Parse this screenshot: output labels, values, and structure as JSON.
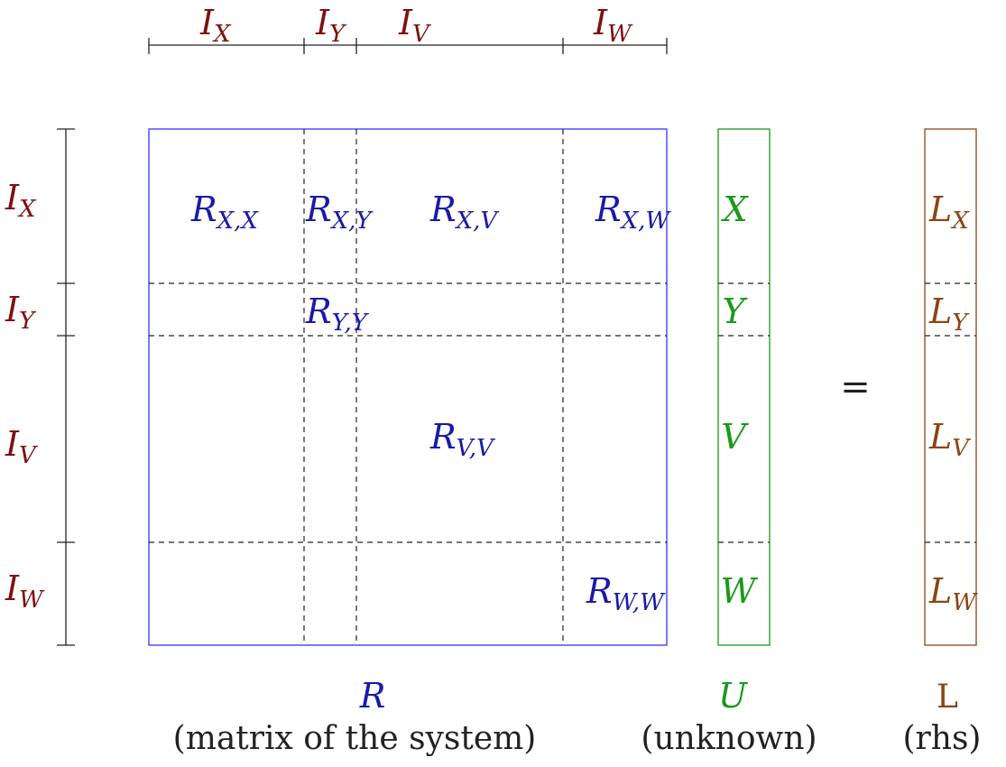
{
  "colors": {
    "index_label": "#7f1010",
    "matrix": "#1a1aa8",
    "matrix_box": "#3333ff",
    "unknown": "#1a9a1a",
    "rhs": "#8b4513",
    "dim_line": "#222222",
    "partition": "#222222"
  },
  "column_indices": [
    {
      "base": "I",
      "sub": "X"
    },
    {
      "base": "I",
      "sub": "Y"
    },
    {
      "base": "I",
      "sub": "V"
    },
    {
      "base": "I",
      "sub": "W"
    }
  ],
  "row_indices": [
    {
      "base": "I",
      "sub": "X"
    },
    {
      "base": "I",
      "sub": "Y"
    },
    {
      "base": "I",
      "sub": "V"
    },
    {
      "base": "I",
      "sub": "W"
    }
  ],
  "matrix_blocks": [
    {
      "base": "R",
      "sub": "X,X"
    },
    {
      "base": "R",
      "sub": "X,Y"
    },
    {
      "base": "R",
      "sub": "X,V"
    },
    {
      "base": "R",
      "sub": "X,W"
    },
    {
      "base": "R",
      "sub": "Y,Y"
    },
    {
      "base": "R",
      "sub": "V,V"
    },
    {
      "base": "R",
      "sub": "W,W"
    }
  ],
  "unknown_entries": [
    "X",
    "Y",
    "V",
    "W"
  ],
  "rhs_entries": [
    {
      "base": "L",
      "sub": "X"
    },
    {
      "base": "L",
      "sub": "Y"
    },
    {
      "base": "L",
      "sub": "V"
    },
    {
      "base": "L",
      "sub": "W"
    }
  ],
  "equals_sign": "=",
  "captions": {
    "matrix_symbol": "R",
    "matrix_desc": "(matrix of the system)",
    "unknown_symbol": "U",
    "unknown_desc": "(unknown)",
    "rhs_symbol": "L",
    "rhs_desc": "(rhs)"
  }
}
